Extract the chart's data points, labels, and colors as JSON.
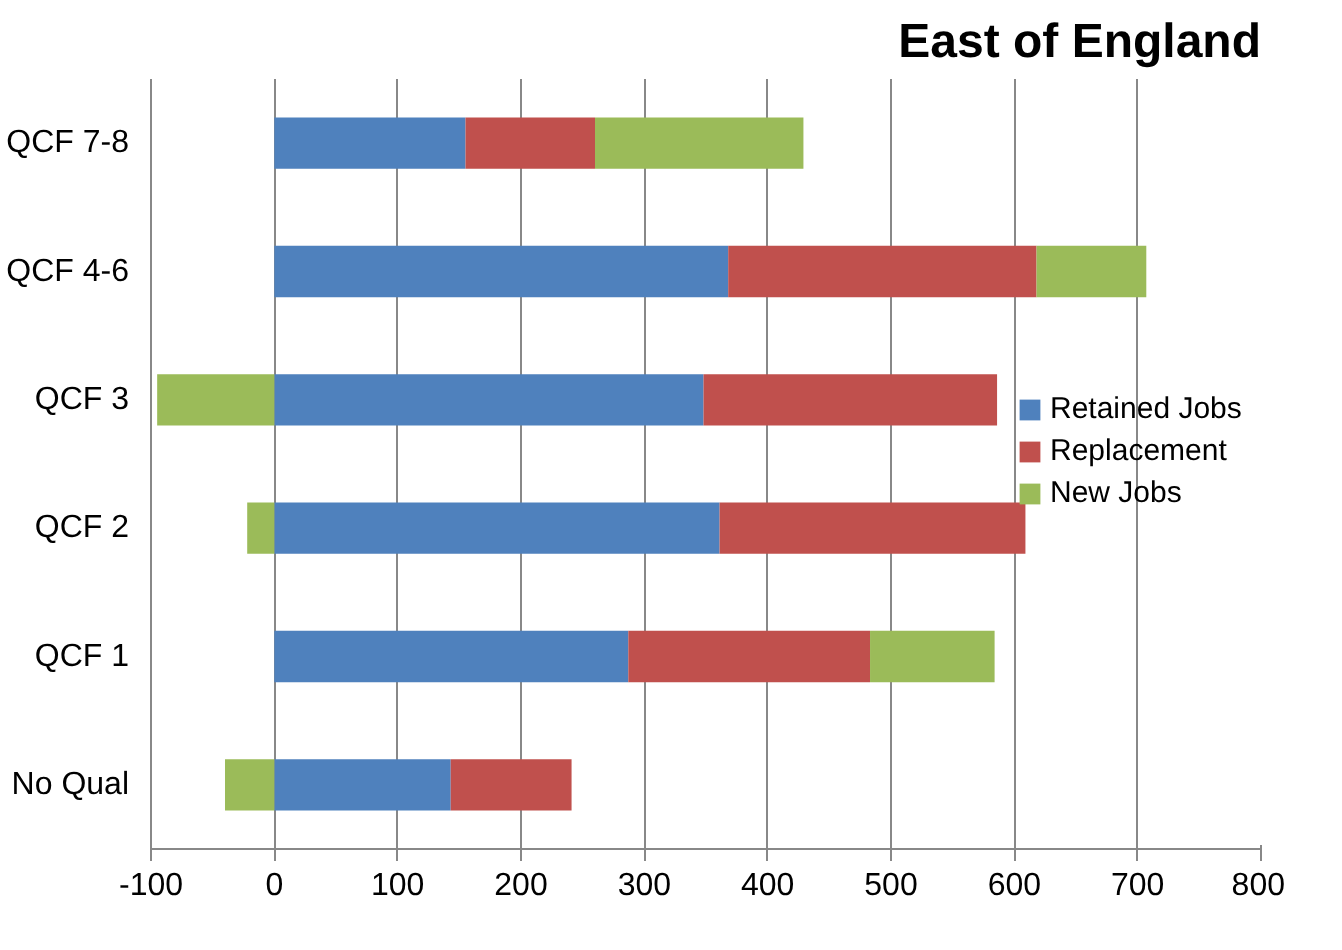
{
  "chart_data": {
    "type": "bar",
    "title": "East of England",
    "orientation": "horizontal",
    "stacked": true,
    "categories": [
      "QCF 7-8",
      "QCF 4-6",
      "QCF 3",
      "QCF 2",
      "QCF 1",
      "No Qual"
    ],
    "series": [
      {
        "name": "Retained Jobs",
        "color": "#4f81bd",
        "values": [
          155,
          368,
          348,
          361,
          287,
          143
        ]
      },
      {
        "name": "Replacement",
        "color": "#c0504d",
        "values": [
          105,
          250,
          238,
          248,
          196,
          98
        ]
      },
      {
        "name": "New Jobs",
        "color": "#9bbb59",
        "values": [
          169,
          89,
          -95,
          -22,
          101,
          -40
        ]
      }
    ],
    "xlim": [
      -100,
      800
    ],
    "xticks": [
      -100,
      0,
      100,
      200,
      300,
      400,
      500,
      600,
      700,
      800
    ],
    "grid": "x",
    "legend": "right"
  }
}
